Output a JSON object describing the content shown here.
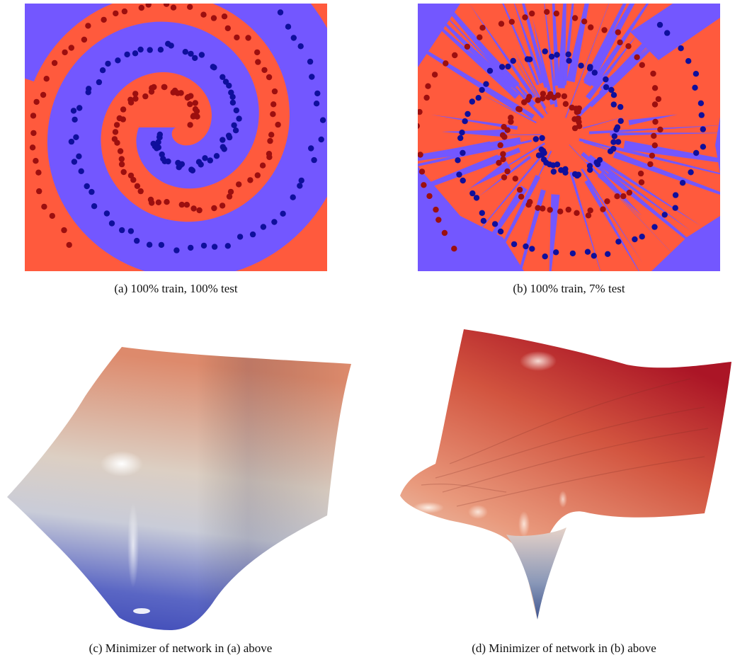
{
  "figure": {
    "panels": [
      {
        "id": "a",
        "caption": "(a) 100% train, 100% test"
      },
      {
        "id": "b",
        "caption": "(b) 100% train, 7% test"
      },
      {
        "id": "c",
        "caption": "(c) Minimizer of network in (a) above"
      },
      {
        "id": "d",
        "caption": "(d) Minimizer of network in (b) above"
      }
    ],
    "colors": {
      "class_red_region": "#ff5a3d",
      "class_blue_region": "#7357ff",
      "red_points": "#9c0f0f",
      "blue_points": "#0f0f9c",
      "surface_low": "#3a45b5",
      "surface_mid": "#d8d5d0",
      "surface_high": "#d9826a",
      "surface_peak": "#b3192b"
    }
  },
  "chart_data": [
    {
      "type": "scatter",
      "panel": "a",
      "description_mode": "two-arm spiral classification with smooth decision boundary",
      "series": [
        {
          "color": "#9c0f0f",
          "class": "red",
          "arm_offset_deg": 0
        },
        {
          "color": "#0f0f9c",
          "class": "blue",
          "arm_offset_deg": 180
        }
      ],
      "points_per_class": 100,
      "turns": 1.6,
      "grid": false
    },
    {
      "type": "scatter",
      "panel": "b",
      "description_mode": "two-arm spiral classification with jagged overfitted decision boundary",
      "series": [
        {
          "color": "#9c0f0f",
          "class": "red",
          "arm_offset_deg": 0
        },
        {
          "color": "#0f0f9c",
          "class": "blue",
          "arm_offset_deg": 180
        }
      ],
      "points_per_class": 100,
      "turns": 1.6,
      "grid": false
    }
  ]
}
